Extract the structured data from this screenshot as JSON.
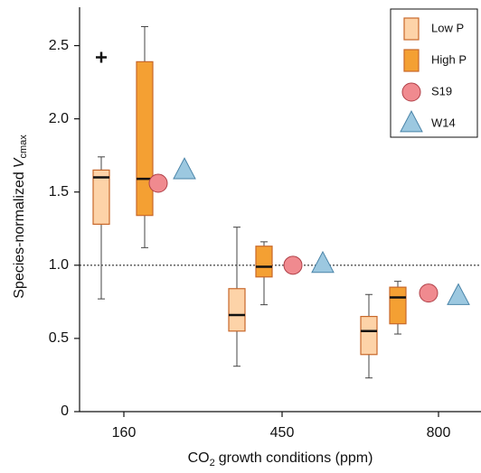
{
  "chart_data": {
    "type": "box",
    "ylabel_parts": [
      "Species-normalized",
      "V",
      "cmax"
    ],
    "xlabel_parts": [
      "CO",
      "2",
      "growth conditions (ppm)"
    ],
    "categories": [
      "160",
      "450",
      "800"
    ],
    "ylim": [
      0,
      2.75
    ],
    "yticks": [
      0,
      0.5,
      {
        "value": 1,
        "label": "1.0"
      },
      1.5,
      {
        "value": 2,
        "label": "2.0"
      },
      2.5
    ],
    "ref_line": 1,
    "series": [
      {
        "name": "Low P",
        "kind": "box",
        "color": "#fdd3a8",
        "edge": "#c8682a",
        "values": [
          {
            "low": 0.77,
            "q1": 1.28,
            "median": 1.6,
            "q3": 1.65,
            "high": 1.74,
            "outliers": [
              2.42
            ]
          },
          {
            "low": 0.31,
            "q1": 0.55,
            "median": 0.66,
            "q3": 0.84,
            "high": 1.26
          },
          {
            "low": 0.23,
            "q1": 0.39,
            "median": 0.55,
            "q3": 0.65,
            "high": 0.8
          }
        ]
      },
      {
        "name": "High P",
        "kind": "box",
        "color": "#f4a033",
        "edge": "#c8682a",
        "values": [
          {
            "low": 1.12,
            "q1": 1.34,
            "median": 1.59,
            "q3": 2.39,
            "high": 2.63
          },
          {
            "low": 0.73,
            "q1": 0.92,
            "median": 0.99,
            "q3": 1.13,
            "high": 1.16
          },
          {
            "low": 0.53,
            "q1": 0.6,
            "median": 0.78,
            "q3": 0.85,
            "high": 0.89
          }
        ]
      },
      {
        "name": "S19",
        "kind": "circle",
        "color": "#f08a8f",
        "edge": "#b04048",
        "values": [
          1.56,
          1.0,
          0.81
        ]
      },
      {
        "name": "W14",
        "kind": "triangle",
        "color": "#9cc8e0",
        "edge": "#4a84a8",
        "values": [
          1.64,
          1.0,
          0.78
        ]
      }
    ]
  }
}
